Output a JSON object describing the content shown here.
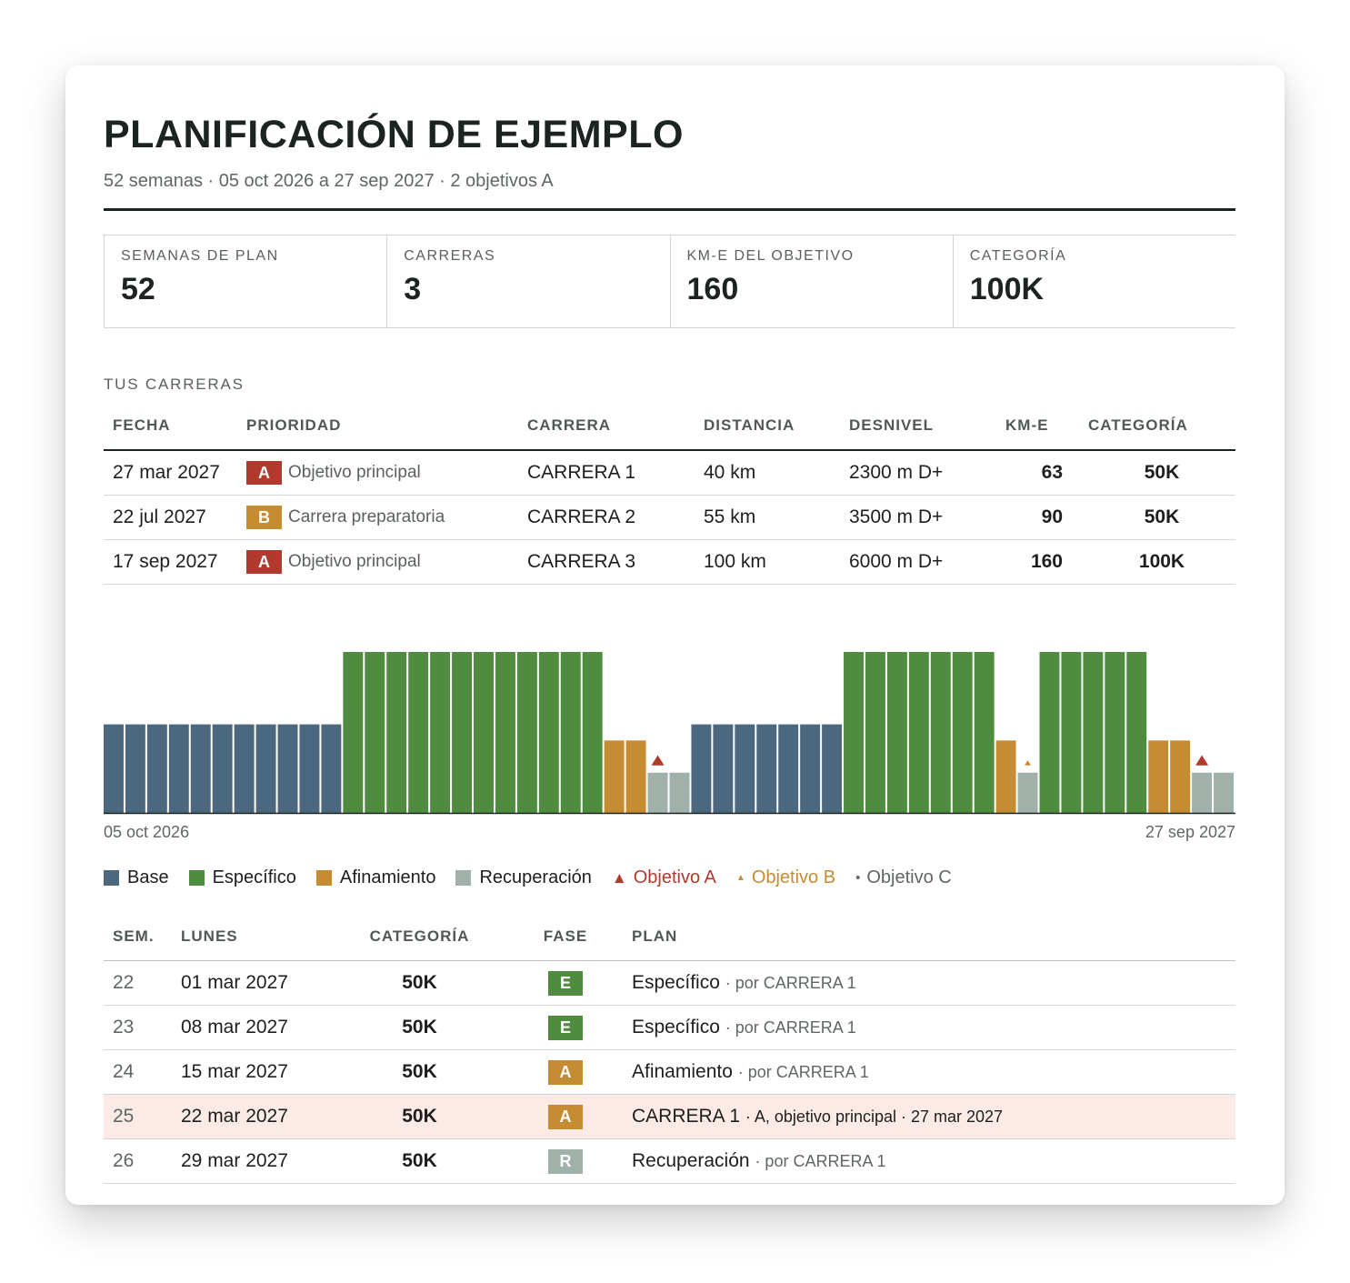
{
  "header": {
    "title": "PLANIFICACIÓN DE EJEMPLO",
    "subtitle": "52 semanas · 05 oct 2026 a 27 sep 2027 · 2 objetivos A"
  },
  "stats": [
    {
      "label": "SEMANAS DE PLAN",
      "value": "52"
    },
    {
      "label": "CARRERAS",
      "value": "3"
    },
    {
      "label": "KM-E DEL OBJETIVO",
      "value": "160"
    },
    {
      "label": "CATEGORÍA",
      "value": "100K"
    }
  ],
  "races": {
    "section_label": "TUS CARRERAS",
    "columns": [
      "FECHA",
      "PRIORIDAD",
      "CARRERA",
      "DISTANCIA",
      "DESNIVEL",
      "KM-E",
      "CATEGORÍA"
    ],
    "rows": [
      {
        "date": "27 mar 2027",
        "priority": "A",
        "priority_text": "Objetivo principal",
        "race": "CARRERA 1",
        "distance": "40 km",
        "elevation": "2300 m D+",
        "kme": "63",
        "category": "50K"
      },
      {
        "date": "22 jul 2027",
        "priority": "B",
        "priority_text": "Carrera preparatoria",
        "race": "CARRERA 2",
        "distance": "55 km",
        "elevation": "3500 m D+",
        "kme": "90",
        "category": "50K"
      },
      {
        "date": "17 sep 2027",
        "priority": "A",
        "priority_text": "Objetivo principal",
        "race": "CARRERA 3",
        "distance": "100 km",
        "elevation": "6000 m D+",
        "kme": "160",
        "category": "100K"
      }
    ]
  },
  "colors": {
    "base": "#4b687f",
    "especifico": "#4f8c40",
    "afinamiento": "#c68c31",
    "recuperacion": "#9fb1a8",
    "objetivo_a": "#b03a2e",
    "objetivo_b": "#c68c31",
    "objetivo_c": "#5f6762"
  },
  "chart_data": {
    "type": "bar",
    "x_start_label": "05 oct 2026",
    "x_end_label": "27 sep 2027",
    "levels": {
      "base": 0.55,
      "especifico": 1.0,
      "afinamiento": 0.45,
      "recuperacion": 0.25
    },
    "phases": [
      "base",
      "base",
      "base",
      "base",
      "base",
      "base",
      "base",
      "base",
      "base",
      "base",
      "base",
      "especifico",
      "especifico",
      "especifico",
      "especifico",
      "especifico",
      "especifico",
      "especifico",
      "especifico",
      "especifico",
      "especifico",
      "especifico",
      "especifico",
      "afinamiento",
      "afinamiento",
      "recuperacion",
      "recuperacion",
      "base",
      "base",
      "base",
      "base",
      "base",
      "base",
      "base",
      "especifico",
      "especifico",
      "especifico",
      "especifico",
      "especifico",
      "especifico",
      "especifico",
      "afinamiento",
      "recuperacion",
      "especifico",
      "especifico",
      "especifico",
      "especifico",
      "especifico",
      "afinamiento",
      "afinamiento",
      "recuperacion",
      "recuperacion"
    ],
    "markers": [
      {
        "week": 25,
        "type": "A"
      },
      {
        "week": 42,
        "type": "B"
      },
      {
        "week": 50,
        "type": "A"
      }
    ]
  },
  "legend": [
    {
      "kind": "square",
      "color_key": "base",
      "label": "Base"
    },
    {
      "kind": "square",
      "color_key": "especifico",
      "label": "Específico"
    },
    {
      "kind": "square",
      "color_key": "afinamiento",
      "label": "Afinamiento"
    },
    {
      "kind": "square",
      "color_key": "recuperacion",
      "label": "Recuperación"
    },
    {
      "kind": "triangle-large",
      "color_key": "objetivo_a",
      "label": "Objetivo A"
    },
    {
      "kind": "triangle-small",
      "color_key": "objetivo_b",
      "label": "Objetivo B"
    },
    {
      "kind": "dot",
      "color_key": "objetivo_c",
      "label": "Objetivo C"
    }
  ],
  "weeks": {
    "columns": [
      "SEM.",
      "LUNES",
      "CATEGORÍA",
      "FASE",
      "PLAN"
    ],
    "rows": [
      {
        "num": "22",
        "monday": "01 mar 2027",
        "category": "50K",
        "phase": "E",
        "phase_key": "especifico",
        "plan": "Específico",
        "note": "· por CARRERA 1",
        "highlight": false
      },
      {
        "num": "23",
        "monday": "08 mar 2027",
        "category": "50K",
        "phase": "E",
        "phase_key": "especifico",
        "plan": "Específico",
        "note": "· por CARRERA 1",
        "highlight": false
      },
      {
        "num": "24",
        "monday": "15 mar 2027",
        "category": "50K",
        "phase": "A",
        "phase_key": "afinamiento",
        "plan": "Afinamiento",
        "note": "· por CARRERA 1",
        "highlight": false
      },
      {
        "num": "25",
        "monday": "22 mar 2027",
        "category": "50K",
        "phase": "A",
        "phase_key": "afinamiento",
        "plan": "CARRERA 1",
        "note": "· A, objetivo principal · 27 mar 2027",
        "highlight": true
      },
      {
        "num": "26",
        "monday": "29 mar 2027",
        "category": "50K",
        "phase": "R",
        "phase_key": "recuperacion",
        "plan": "Recuperación",
        "note": "· por CARRERA 1",
        "highlight": false
      }
    ]
  }
}
